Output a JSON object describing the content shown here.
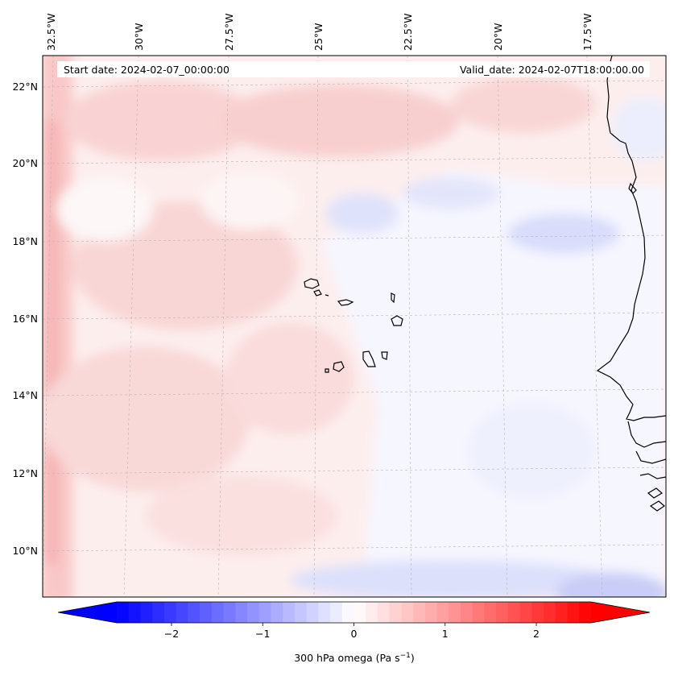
{
  "map": {
    "start_label": "Start date: 2024-02-07_00:00:00",
    "valid_label": "Valid_date: 2024-02-07T18:00:00.00",
    "lon_labels": [
      "32.5°W",
      "30°W",
      "27.5°W",
      "25°W",
      "22.5°W",
      "20°W",
      "17.5°W"
    ],
    "lat_labels": [
      "22°N",
      "20°N",
      "18°N",
      "16°N",
      "14°N",
      "12°N",
      "10°N"
    ],
    "colors": {
      "low": "#0000ff",
      "mid": "#ffffff",
      "high": "#ff0000",
      "coast": "#000000"
    }
  },
  "colorbar": {
    "ticks": [
      "−2",
      "−1",
      "0",
      "1",
      "2"
    ],
    "tick_values": [
      -2,
      -1,
      0,
      1,
      2
    ],
    "range": [
      -2.6,
      2.6
    ],
    "label_main": "300 hPa omega (Pa s",
    "label_sup": "−1",
    "label_end": ")"
  }
}
